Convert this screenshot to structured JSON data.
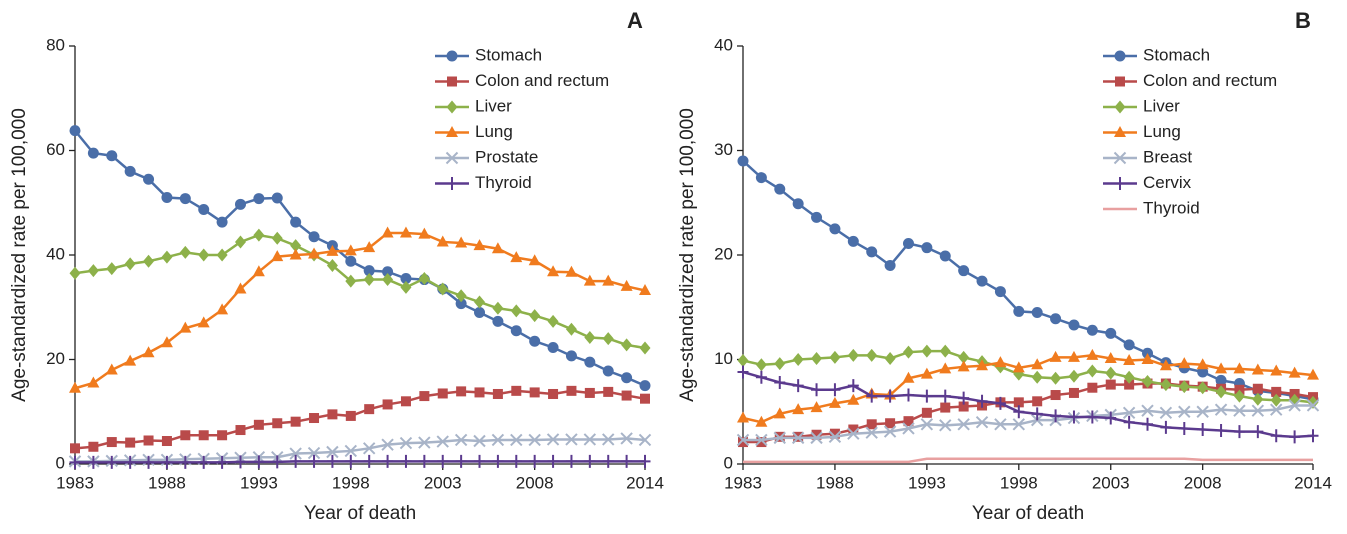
{
  "chart_data": [
    {
      "type": "line",
      "label": "A",
      "xlabel": "Year of death",
      "ylabel": "Age-standardized rate per 100,000",
      "x": [
        1983,
        1984,
        1985,
        1986,
        1987,
        1988,
        1989,
        1990,
        1991,
        1992,
        1993,
        1994,
        1995,
        1996,
        1997,
        1998,
        1999,
        2000,
        2001,
        2002,
        2003,
        2004,
        2005,
        2006,
        2007,
        2008,
        2009,
        2010,
        2011,
        2012,
        2013,
        2014
      ],
      "xlim": [
        1983,
        2014
      ],
      "xticks": [
        1983,
        1988,
        1993,
        1998,
        2003,
        2008,
        2014
      ],
      "ylim": [
        0,
        80
      ],
      "yticks": [
        0,
        20,
        40,
        60,
        80
      ],
      "legend": "upper right",
      "series": [
        {
          "name": "Stomach",
          "color": "#4a6ea8",
          "marker": "circle",
          "values": [
            63.8,
            59.5,
            59,
            56,
            54.5,
            51,
            50.8,
            48.7,
            46.3,
            49.7,
            50.8,
            50.9,
            46.3,
            43.5,
            41.8,
            38.8,
            37,
            36.8,
            35.5,
            35.3,
            33.5,
            30.7,
            29,
            27.3,
            25.5,
            23.5,
            22.3,
            20.7,
            19.5,
            17.8,
            16.5,
            15
          ]
        },
        {
          "name": "Colon and rectum",
          "color": "#b94a4a",
          "marker": "square",
          "values": [
            3,
            3.3,
            4.2,
            4.1,
            4.5,
            4.4,
            5.5,
            5.5,
            5.5,
            6.5,
            7.5,
            7.8,
            8.1,
            8.8,
            9.5,
            9.2,
            10.5,
            11.4,
            12,
            13,
            13.5,
            13.9,
            13.7,
            13.4,
            14,
            13.7,
            13.4,
            14,
            13.6,
            13.8,
            13.1,
            12.5
          ]
        },
        {
          "name": "Liver",
          "color": "#8db14a",
          "marker": "diamond",
          "values": [
            36.5,
            37,
            37.4,
            38.3,
            38.8,
            39.6,
            40.5,
            40,
            40,
            42.5,
            43.8,
            43.2,
            41.8,
            40,
            38,
            35,
            35.3,
            35.3,
            33.8,
            35.5,
            33.5,
            32.2,
            31,
            29.8,
            29.3,
            28.4,
            27.3,
            25.8,
            24.2,
            24,
            22.8,
            22.2
          ]
        },
        {
          "name": "Lung",
          "color": "#f07b1e",
          "marker": "triangle",
          "values": [
            14.5,
            15.5,
            18,
            19.7,
            21.3,
            23.2,
            26,
            27,
            29.5,
            33.5,
            36.8,
            39.7,
            40,
            40.2,
            40.7,
            40.8,
            41.4,
            44.2,
            44.2,
            44,
            42.5,
            42.3,
            41.8,
            41.2,
            39.5,
            38.9,
            36.8,
            36.7,
            35,
            35,
            34,
            33.2
          ]
        },
        {
          "name": "Prostate",
          "color": "#a8b4c8",
          "marker": "cross",
          "values": [
            0.5,
            0.5,
            0.6,
            0.7,
            0.8,
            0.8,
            0.9,
            1,
            1.1,
            1.2,
            1.3,
            1.3,
            2,
            2.1,
            2.3,
            2.5,
            3,
            3.7,
            4,
            4.1,
            4.3,
            4.6,
            4.4,
            4.6,
            4.6,
            4.6,
            4.7,
            4.7,
            4.7,
            4.7,
            4.9,
            4.6
          ]
        },
        {
          "name": "Thyroid",
          "color": "#5b3a8e",
          "marker": "plus",
          "values": [
            0.3,
            0.3,
            0.3,
            0.3,
            0.3,
            0.3,
            0.3,
            0.3,
            0.3,
            0.4,
            0.4,
            0.4,
            0.5,
            0.5,
            0.5,
            0.5,
            0.5,
            0.5,
            0.5,
            0.5,
            0.5,
            0.5,
            0.5,
            0.5,
            0.5,
            0.5,
            0.5,
            0.5,
            0.5,
            0.5,
            0.5,
            0.5
          ]
        }
      ]
    },
    {
      "type": "line",
      "label": "B",
      "xlabel": "Year of death",
      "ylabel": "Age-standardized rate per 100,000",
      "x": [
        1983,
        1984,
        1985,
        1986,
        1987,
        1988,
        1989,
        1990,
        1991,
        1992,
        1993,
        1994,
        1995,
        1996,
        1997,
        1998,
        1999,
        2000,
        2001,
        2002,
        2003,
        2004,
        2005,
        2006,
        2007,
        2008,
        2009,
        2010,
        2011,
        2012,
        2013,
        2014
      ],
      "xlim": [
        1983,
        2014
      ],
      "xticks": [
        1983,
        1988,
        1993,
        1998,
        2003,
        2008,
        2014
      ],
      "ylim": [
        0,
        40
      ],
      "yticks": [
        0,
        10,
        20,
        30,
        40
      ],
      "legend": "upper right",
      "series": [
        {
          "name": "Stomach",
          "color": "#4a6ea8",
          "marker": "circle",
          "values": [
            29,
            27.4,
            26.3,
            24.9,
            23.6,
            22.5,
            21.3,
            20.3,
            19,
            21.1,
            20.7,
            19.9,
            18.5,
            17.5,
            16.5,
            14.6,
            14.5,
            13.9,
            13.3,
            12.8,
            12.5,
            11.4,
            10.6,
            9.7,
            9.2,
            8.8,
            8,
            7.7,
            7,
            6.8,
            6.5,
            6.2
          ]
        },
        {
          "name": "Colon and rectum",
          "color": "#b94a4a",
          "marker": "square",
          "values": [
            2.1,
            2.1,
            2.6,
            2.6,
            2.8,
            2.9,
            3.3,
            3.8,
            3.9,
            4.1,
            4.9,
            5.4,
            5.5,
            5.6,
            5.9,
            5.9,
            6,
            6.6,
            6.8,
            7.3,
            7.6,
            7.6,
            7.7,
            7.7,
            7.5,
            7.4,
            7.2,
            7.1,
            7.2,
            6.9,
            6.7,
            6.4
          ]
        },
        {
          "name": "Liver",
          "color": "#8db14a",
          "marker": "diamond",
          "values": [
            9.9,
            9.5,
            9.6,
            10,
            10.1,
            10.2,
            10.4,
            10.4,
            10.1,
            10.7,
            10.8,
            10.8,
            10.2,
            9.8,
            9.3,
            8.6,
            8.3,
            8.2,
            8.4,
            8.9,
            8.7,
            8.3,
            7.9,
            7.6,
            7.4,
            7.3,
            6.9,
            6.5,
            6.2,
            6.1,
            6.1,
            5.9
          ]
        },
        {
          "name": "Lung",
          "color": "#f07b1e",
          "marker": "triangle",
          "values": [
            4.4,
            4,
            4.8,
            5.2,
            5.4,
            5.8,
            6.1,
            6.7,
            6.6,
            8.2,
            8.6,
            9.1,
            9.3,
            9.4,
            9.7,
            9.2,
            9.5,
            10.2,
            10.2,
            10.4,
            10.1,
            9.9,
            10,
            9.4,
            9.6,
            9.5,
            9.1,
            9.1,
            9,
            8.9,
            8.7,
            8.5
          ]
        },
        {
          "name": "Breast",
          "color": "#a8b4c8",
          "marker": "cross",
          "values": [
            2.3,
            2.3,
            2.5,
            2.5,
            2.5,
            2.6,
            2.9,
            3,
            3.1,
            3.4,
            3.8,
            3.7,
            3.8,
            4,
            3.8,
            3.8,
            4.2,
            4.2,
            4.4,
            4.6,
            4.7,
            4.9,
            5.1,
            4.9,
            5,
            5,
            5.2,
            5.1,
            5.1,
            5.2,
            5.6,
            5.6
          ]
        },
        {
          "name": "Cervix",
          "color": "#5b3a8e",
          "marker": "plus",
          "values": [
            8.8,
            8.3,
            7.8,
            7.5,
            7.1,
            7.1,
            7.5,
            6.5,
            6.5,
            6.6,
            6.5,
            6.5,
            6.3,
            6,
            5.8,
            5,
            4.8,
            4.6,
            4.5,
            4.5,
            4.4,
            4,
            3.8,
            3.5,
            3.4,
            3.3,
            3.2,
            3.1,
            3.1,
            2.7,
            2.6,
            2.7
          ]
        },
        {
          "name": "Thyroid",
          "color": "#e8a0a0",
          "marker": "none",
          "values": [
            0.2,
            0.2,
            0.2,
            0.2,
            0.2,
            0.2,
            0.2,
            0.2,
            0.2,
            0.2,
            0.5,
            0.5,
            0.5,
            0.5,
            0.5,
            0.5,
            0.5,
            0.5,
            0.5,
            0.5,
            0.5,
            0.5,
            0.5,
            0.5,
            0.5,
            0.4,
            0.4,
            0.4,
            0.4,
            0.4,
            0.4,
            0.4
          ]
        }
      ]
    }
  ]
}
